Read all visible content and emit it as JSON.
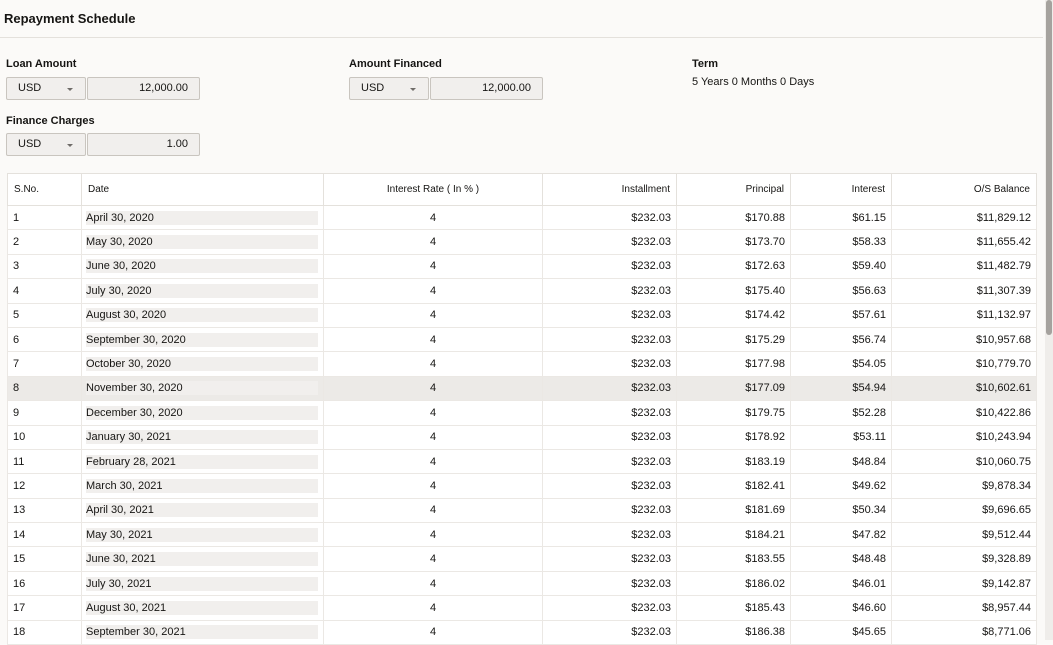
{
  "header": {
    "title": "Repayment Schedule"
  },
  "fields": {
    "loan_amount": {
      "label": "Loan Amount",
      "currency": "USD",
      "value": "12,000.00"
    },
    "amount_financed": {
      "label": "Amount Financed",
      "currency": "USD",
      "value": "12,000.00"
    },
    "term": {
      "label": "Term",
      "value": "5 Years 0 Months 0 Days"
    },
    "finance_charges": {
      "label": "Finance Charges",
      "currency": "USD",
      "value": "1.00"
    }
  },
  "table": {
    "columns": [
      "S.No.",
      "Date",
      "Interest Rate ( In % )",
      "Installment",
      "Principal",
      "Interest",
      "O/S Balance"
    ],
    "rows": [
      [
        "1",
        "April 30, 2020",
        "4",
        "$232.03",
        "$170.88",
        "$61.15",
        "$11,829.12"
      ],
      [
        "2",
        "May 30, 2020",
        "4",
        "$232.03",
        "$173.70",
        "$58.33",
        "$11,655.42"
      ],
      [
        "3",
        "June 30, 2020",
        "4",
        "$232.03",
        "$172.63",
        "$59.40",
        "$11,482.79"
      ],
      [
        "4",
        "July 30, 2020",
        "4",
        "$232.03",
        "$175.40",
        "$56.63",
        "$11,307.39"
      ],
      [
        "5",
        "August 30, 2020",
        "4",
        "$232.03",
        "$174.42",
        "$57.61",
        "$11,132.97"
      ],
      [
        "6",
        "September 30, 2020",
        "4",
        "$232.03",
        "$175.29",
        "$56.74",
        "$10,957.68"
      ],
      [
        "7",
        "October 30, 2020",
        "4",
        "$232.03",
        "$177.98",
        "$54.05",
        "$10,779.70"
      ],
      [
        "8",
        "November 30, 2020",
        "4",
        "$232.03",
        "$177.09",
        "$54.94",
        "$10,602.61"
      ],
      [
        "9",
        "December 30, 2020",
        "4",
        "$232.03",
        "$179.75",
        "$52.28",
        "$10,422.86"
      ],
      [
        "10",
        "January 30, 2021",
        "4",
        "$232.03",
        "$178.92",
        "$53.11",
        "$10,243.94"
      ],
      [
        "11",
        "February 28, 2021",
        "4",
        "$232.03",
        "$183.19",
        "$48.84",
        "$10,060.75"
      ],
      [
        "12",
        "March 30, 2021",
        "4",
        "$232.03",
        "$182.41",
        "$49.62",
        "$9,878.34"
      ],
      [
        "13",
        "April 30, 2021",
        "4",
        "$232.03",
        "$181.69",
        "$50.34",
        "$9,696.65"
      ],
      [
        "14",
        "May 30, 2021",
        "4",
        "$232.03",
        "$184.21",
        "$47.82",
        "$9,512.44"
      ],
      [
        "15",
        "June 30, 2021",
        "4",
        "$232.03",
        "$183.55",
        "$48.48",
        "$9,328.89"
      ],
      [
        "16",
        "July 30, 2021",
        "4",
        "$232.03",
        "$186.02",
        "$46.01",
        "$9,142.87"
      ],
      [
        "17",
        "August 30, 2021",
        "4",
        "$232.03",
        "$185.43",
        "$46.60",
        "$8,957.44"
      ],
      [
        "18",
        "September 30, 2021",
        "4",
        "$232.03",
        "$186.38",
        "$45.65",
        "$8,771.06"
      ]
    ]
  }
}
